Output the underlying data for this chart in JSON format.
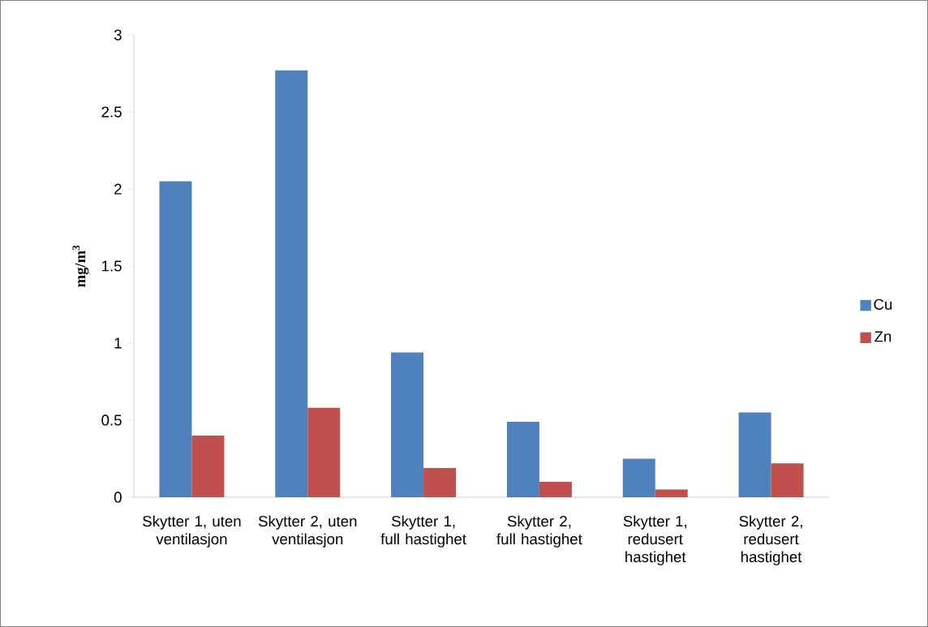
{
  "chart_data": {
    "type": "bar",
    "ylabel": "mg/m$^{3}$",
    "categories": [
      "Skytter 1, uten ventilasjon",
      "Skytter 2, uten ventilasjon",
      "Skytter 1, full hastighet",
      "Skytter 2, full hastighet",
      "Skytter 1, redusert hastighet",
      "Skytter 2, redusert hastighet"
    ],
    "series": [
      {
        "name": "Cu",
        "color": "#4f81bd",
        "values": [
          2.05,
          2.77,
          0.94,
          0.49,
          0.25,
          0.55
        ]
      },
      {
        "name": "Zn",
        "color": "#c0504d",
        "values": [
          0.4,
          0.58,
          0.19,
          0.1,
          0.05,
          0.22
        ]
      }
    ],
    "ylim": [
      0,
      3
    ],
    "yticks": [
      0,
      0.5,
      1,
      1.5,
      2,
      2.5,
      3
    ],
    "legend": "right"
  }
}
